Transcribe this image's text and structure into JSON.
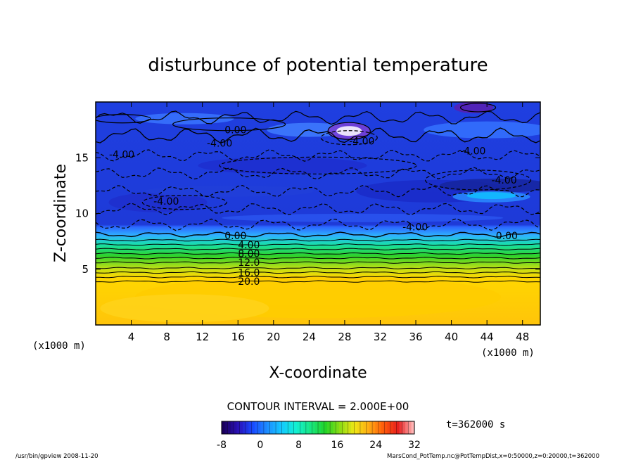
{
  "chart_data": {
    "type": "heatmap",
    "title": "disturbunce of potential temperature",
    "xlabel": "X-coordinate",
    "ylabel": "Z-coordinate",
    "x_unit_left": "(x1000 m)",
    "x_unit_right": "(x1000 m)",
    "xlim": [
      0,
      50
    ],
    "ylim": [
      0,
      20
    ],
    "x_ticks": [
      4,
      8,
      12,
      16,
      20,
      24,
      28,
      32,
      36,
      40,
      44,
      48
    ],
    "y_ticks": [
      5,
      10,
      15
    ],
    "contour_interval_text": "CONTOUR INTERVAL = 2.000E+00",
    "time_label": "t=362000 s",
    "colorbar": {
      "min": -8,
      "max": 32,
      "ticks": [
        -8,
        0,
        8,
        16,
        24,
        32
      ],
      "colors": [
        "#1a005a",
        "#2a10b4",
        "#1848ff",
        "#1e8cff",
        "#14c8ff",
        "#12f0d2",
        "#18e682",
        "#22d428",
        "#8cdc14",
        "#f0e614",
        "#ffaa14",
        "#ff5a0a",
        "#e61e1e",
        "#ffb4b4"
      ]
    },
    "contour_labels": [
      {
        "text": "0.00",
        "x": 14.5,
        "z": 17.5
      },
      {
        "text": "-4.00",
        "x": 12.5,
        "z": 16.3
      },
      {
        "text": "-4.00",
        "x": 1.5,
        "z": 15.3
      },
      {
        "text": "-4.00",
        "x": 28.5,
        "z": 16.5
      },
      {
        "text": "-4.00",
        "x": 41,
        "z": 15.6
      },
      {
        "text": "-4.00",
        "x": 44.5,
        "z": 13.0
      },
      {
        "text": "-4.00",
        "x": 6.5,
        "z": 11.1
      },
      {
        "text": "-4.00",
        "x": 34.5,
        "z": 8.8
      },
      {
        "text": "0.00",
        "x": 14.5,
        "z": 8.0
      },
      {
        "text": "4.00",
        "x": 16,
        "z": 7.2
      },
      {
        "text": "8.00",
        "x": 16,
        "z": 6.4
      },
      {
        "text": "12.0",
        "x": 16,
        "z": 5.6
      },
      {
        "text": "16.0",
        "x": 16,
        "z": 4.7
      },
      {
        "text": "20.0",
        "x": 16,
        "z": 3.9
      },
      {
        "text": "0.00",
        "x": 45,
        "z": 8.0
      }
    ],
    "footer_left": "/usr/bin/gpview   2008-11-20",
    "footer_right": "MarsCond_PotTemp.nc@PotTempDist,x=0:50000,z=0:20000,t=362000"
  }
}
